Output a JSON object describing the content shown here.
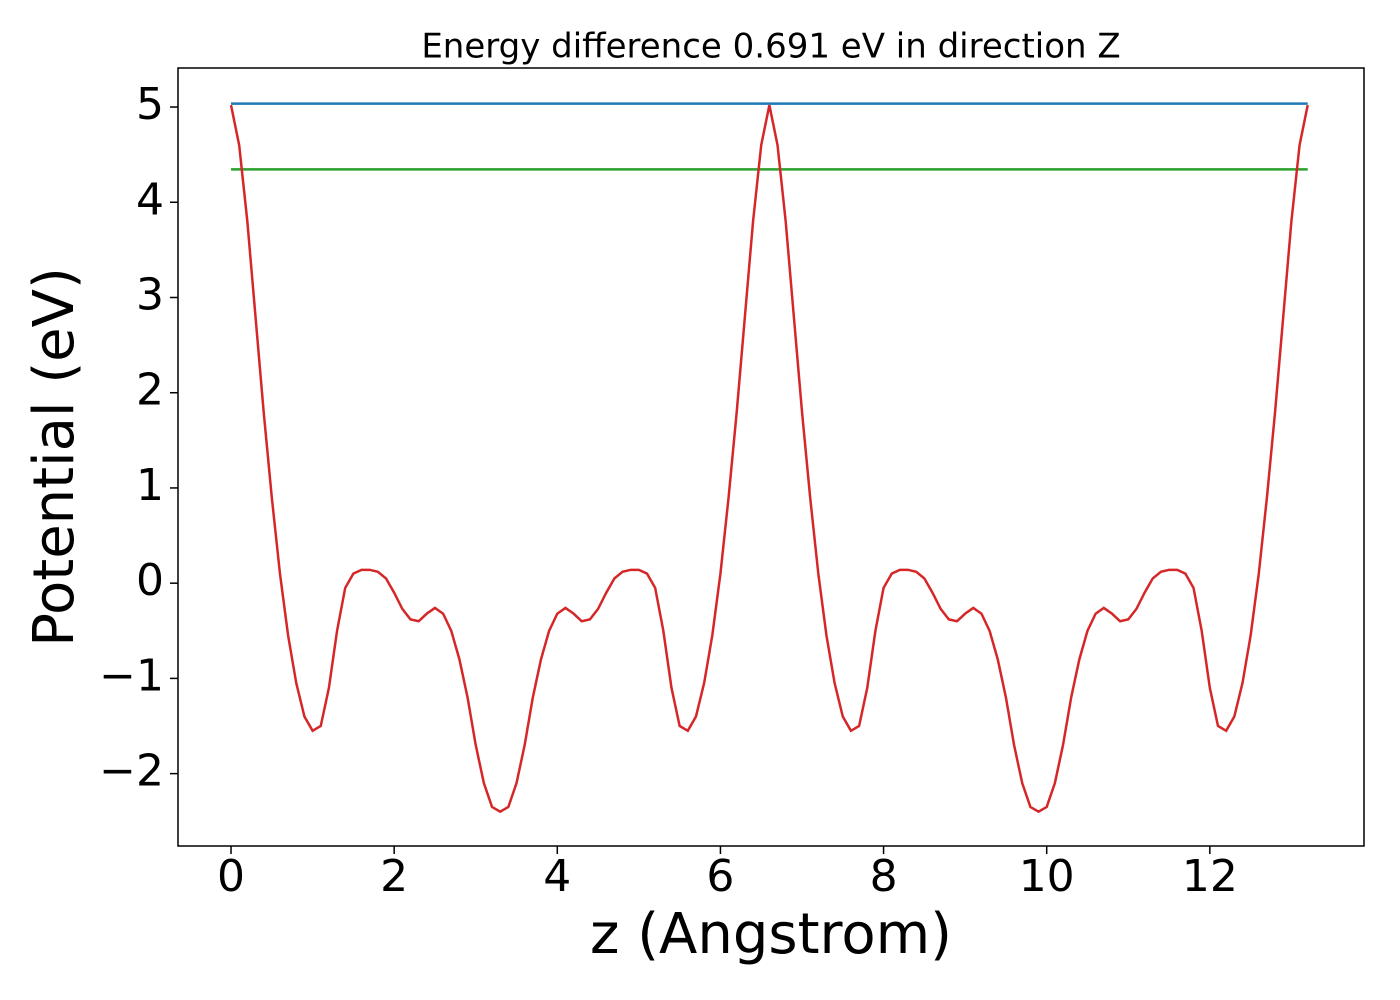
{
  "chart_data": {
    "type": "line",
    "title": "Energy difference 0.691 eV in direction Z",
    "xlabel": "z (Angstrom)",
    "ylabel": "Potential (eV)",
    "xlim": [
      -0.65,
      13.89
    ],
    "ylim": [
      -2.76,
      5.41
    ],
    "xticks": [
      0,
      2,
      4,
      6,
      8,
      10,
      12
    ],
    "yticks": [
      {
        "value": -2,
        "label": "−2"
      },
      {
        "value": -1,
        "label": "−1"
      },
      0,
      1,
      2,
      3,
      4,
      5
    ],
    "series": [
      {
        "color": "#1f77b4",
        "x": [
          0,
          13.2
        ],
        "values": [
          5.036,
          5.036
        ]
      },
      {
        "color": "#2ca02c",
        "x": [
          0,
          13.2
        ],
        "values": [
          4.345,
          4.345
        ]
      },
      {
        "color": "#d62728",
        "x": [
          0,
          0.1,
          0.2,
          0.3,
          0.4,
          0.5,
          0.6,
          0.7,
          0.8,
          0.9,
          1.0,
          1.1,
          1.2,
          1.3,
          1.4,
          1.5,
          1.6,
          1.7,
          1.8,
          1.9,
          2.0,
          2.1,
          2.2,
          2.3,
          2.4,
          2.5,
          2.6,
          2.7,
          2.8,
          2.9,
          3.0,
          3.1,
          3.2,
          3.3,
          3.4,
          3.5,
          3.6,
          3.7,
          3.8,
          3.9,
          4.0,
          4.1,
          4.2,
          4.3,
          4.4,
          4.5,
          4.6,
          4.7,
          4.8,
          4.9,
          5.0,
          5.1,
          5.2,
          5.3,
          5.4,
          5.5,
          5.6,
          5.7,
          5.8,
          5.9,
          6.0,
          6.1,
          6.2,
          6.3,
          6.4,
          6.5,
          6.6,
          6.7,
          6.8,
          6.9,
          7.0,
          7.1,
          7.2,
          7.3,
          7.4,
          7.5,
          7.6,
          7.7,
          7.8,
          7.9,
          8.0,
          8.1,
          8.2,
          8.3,
          8.4,
          8.5,
          8.6,
          8.7,
          8.8,
          8.9,
          9.0,
          9.1,
          9.2,
          9.3,
          9.4,
          9.5,
          9.6,
          9.7,
          9.8,
          9.9,
          10.0,
          10.1,
          10.2,
          10.3,
          10.4,
          10.5,
          10.6,
          10.7,
          10.8,
          10.9,
          11.0,
          11.1,
          11.2,
          11.3,
          11.4,
          11.5,
          11.6,
          11.7,
          11.8,
          11.9,
          12.0,
          12.1,
          12.2,
          12.3,
          12.4,
          12.5,
          12.6,
          12.7,
          12.8,
          12.9,
          13.0,
          13.1,
          13.2
        ],
        "values": [
          5.02,
          4.6,
          3.8,
          2.8,
          1.8,
          0.9,
          0.1,
          -0.55,
          -1.05,
          -1.4,
          -1.55,
          -1.5,
          -1.1,
          -0.5,
          -0.05,
          0.1,
          0.14,
          0.14,
          0.12,
          0.05,
          -0.1,
          -0.27,
          -0.38,
          -0.4,
          -0.32,
          -0.26,
          -0.32,
          -0.5,
          -0.8,
          -1.2,
          -1.7,
          -2.1,
          -2.35,
          -2.4,
          -2.35,
          -2.1,
          -1.7,
          -1.2,
          -0.8,
          -0.5,
          -0.32,
          -0.26,
          -0.32,
          -0.4,
          -0.38,
          -0.27,
          -0.1,
          0.05,
          0.12,
          0.14,
          0.14,
          0.1,
          -0.05,
          -0.5,
          -1.1,
          -1.5,
          -1.55,
          -1.4,
          -1.05,
          -0.55,
          0.1,
          0.9,
          1.8,
          2.8,
          3.8,
          4.6,
          5.02,
          4.6,
          3.8,
          2.8,
          1.8,
          0.9,
          0.1,
          -0.55,
          -1.05,
          -1.4,
          -1.55,
          -1.5,
          -1.1,
          -0.5,
          -0.05,
          0.1,
          0.14,
          0.14,
          0.12,
          0.05,
          -0.1,
          -0.27,
          -0.38,
          -0.4,
          -0.32,
          -0.26,
          -0.32,
          -0.5,
          -0.8,
          -1.2,
          -1.7,
          -2.1,
          -2.35,
          -2.4,
          -2.35,
          -2.1,
          -1.7,
          -1.2,
          -0.8,
          -0.5,
          -0.32,
          -0.26,
          -0.32,
          -0.4,
          -0.38,
          -0.27,
          -0.1,
          0.05,
          0.12,
          0.14,
          0.14,
          0.1,
          -0.05,
          -0.5,
          -1.1,
          -1.5,
          -1.55,
          -1.4,
          -1.05,
          -0.55,
          0.1,
          0.9,
          1.8,
          2.8,
          3.8,
          4.6,
          5.02
        ]
      }
    ]
  }
}
